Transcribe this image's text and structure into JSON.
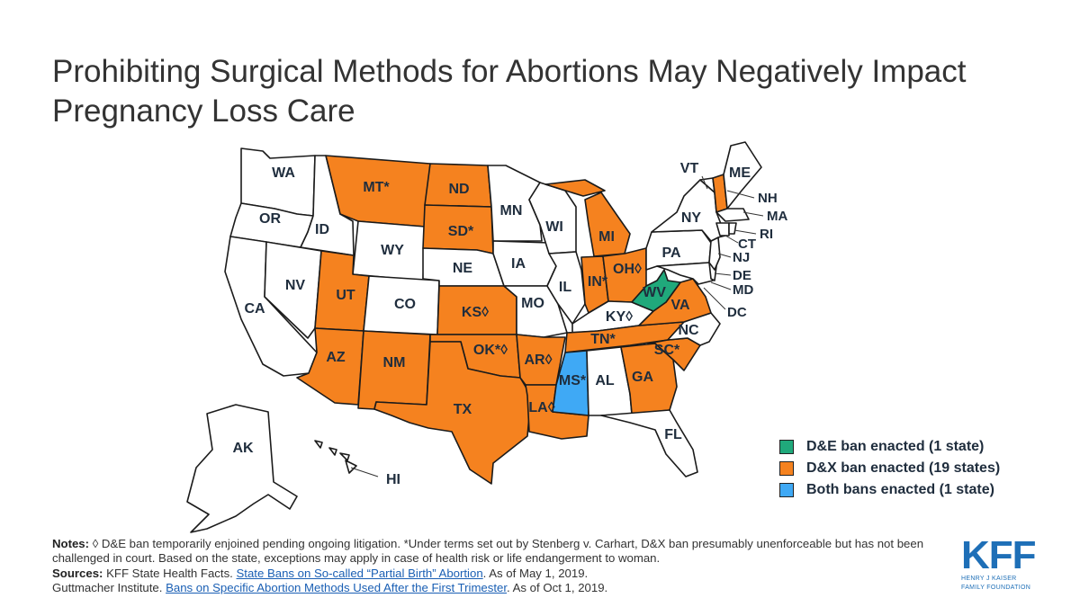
{
  "title": "Prohibiting Surgical Methods for Abortions May Negatively Impact Pregnancy Loss Care",
  "colors": {
    "de_ban": "#20a97b",
    "dx_ban": "#f5821f",
    "both_bans": "#3fa9f5",
    "no_ban": "#ffffff"
  },
  "legend": [
    {
      "status": "de_ban",
      "label": "D&E ban enacted (1 state)"
    },
    {
      "status": "dx_ban",
      "label": "D&X ban enacted (19 states)"
    },
    {
      "status": "both_bans",
      "label": "Both bans enacted (1 state)"
    }
  ],
  "states": {
    "WA": {
      "label": "WA",
      "status": "none"
    },
    "OR": {
      "label": "OR",
      "status": "none"
    },
    "CA": {
      "label": "CA",
      "status": "none"
    },
    "ID": {
      "label": "ID",
      "status": "none"
    },
    "NV": {
      "label": "NV",
      "status": "none"
    },
    "MT": {
      "label": "MT*",
      "status": "dx_ban"
    },
    "WY": {
      "label": "WY",
      "status": "none"
    },
    "UT": {
      "label": "UT",
      "status": "dx_ban"
    },
    "AZ": {
      "label": "AZ",
      "status": "dx_ban"
    },
    "CO": {
      "label": "CO",
      "status": "none"
    },
    "NM": {
      "label": "NM",
      "status": "dx_ban"
    },
    "ND": {
      "label": "ND",
      "status": "dx_ban"
    },
    "SD": {
      "label": "SD*",
      "status": "dx_ban"
    },
    "NE": {
      "label": "NE",
      "status": "none"
    },
    "KS": {
      "label": "KS◊",
      "status": "dx_ban"
    },
    "OK": {
      "label": "OK*◊",
      "status": "dx_ban"
    },
    "TX": {
      "label": "TX",
      "status": "dx_ban"
    },
    "MN": {
      "label": "MN",
      "status": "none"
    },
    "IA": {
      "label": "IA",
      "status": "none"
    },
    "MO": {
      "label": "MO",
      "status": "none"
    },
    "AR": {
      "label": "AR◊",
      "status": "dx_ban"
    },
    "LA": {
      "label": "LA◊",
      "status": "dx_ban"
    },
    "WI": {
      "label": "WI",
      "status": "none"
    },
    "IL": {
      "label": "IL",
      "status": "none"
    },
    "MI": {
      "label": "MI",
      "status": "dx_ban"
    },
    "IN": {
      "label": "IN*",
      "status": "dx_ban"
    },
    "OH": {
      "label": "OH◊",
      "status": "dx_ban"
    },
    "KY": {
      "label": "KY◊",
      "status": "none"
    },
    "TN": {
      "label": "TN*",
      "status": "dx_ban"
    },
    "MS": {
      "label": "MS*",
      "status": "both_bans"
    },
    "AL": {
      "label": "AL",
      "status": "none"
    },
    "GA": {
      "label": "GA",
      "status": "dx_ban"
    },
    "FL": {
      "label": "FL",
      "status": "none"
    },
    "SC": {
      "label": "SC*",
      "status": "dx_ban"
    },
    "NC": {
      "label": "NC",
      "status": "none"
    },
    "VA": {
      "label": "VA",
      "status": "dx_ban"
    },
    "WV": {
      "label": "WV",
      "status": "de_ban"
    },
    "PA": {
      "label": "PA",
      "status": "none"
    },
    "NY": {
      "label": "NY",
      "status": "none"
    },
    "VT": {
      "label": "VT",
      "status": "none"
    },
    "NH": {
      "label": "NH",
      "status": "dx_ban"
    },
    "ME": {
      "label": "ME",
      "status": "none"
    },
    "MA": {
      "label": "MA",
      "status": "none"
    },
    "RI": {
      "label": "RI",
      "status": "none"
    },
    "CT": {
      "label": "CT",
      "status": "none"
    },
    "NJ": {
      "label": "NJ",
      "status": "none"
    },
    "DE": {
      "label": "DE",
      "status": "none"
    },
    "MD": {
      "label": "MD",
      "status": "none"
    },
    "DC": {
      "label": "DC",
      "status": "none"
    },
    "AK": {
      "label": "AK",
      "status": "none"
    },
    "HI": {
      "label": "HI",
      "status": "none"
    }
  },
  "notes": {
    "notes_label": "Notes:",
    "notes_text": "◊ D&E ban temporarily enjoined pending ongoing litigation. *Under terms set out by Stenberg v. Carhart, D&X ban presumably unenforceable but has not been challenged in court. Based on the state, exceptions may apply in case of health risk or life endangerment to woman.",
    "sources_label": "Sources:",
    "source1_pre": "KFF State Health Facts.",
    "source1_link": "State Bans on So-called “Partial Birth” Abortion",
    "source1_post": ". As of May 1, 2019.",
    "source2_pre": "Guttmacher Institute.",
    "source2_link": "Bans on Specific Abortion Methods Used After the First Trimester",
    "source2_post": ". As of Oct 1, 2019."
  },
  "logo": {
    "mark": "KFF",
    "line1": "HENRY J KAISER",
    "line2": "FAMILY FOUNDATION"
  }
}
